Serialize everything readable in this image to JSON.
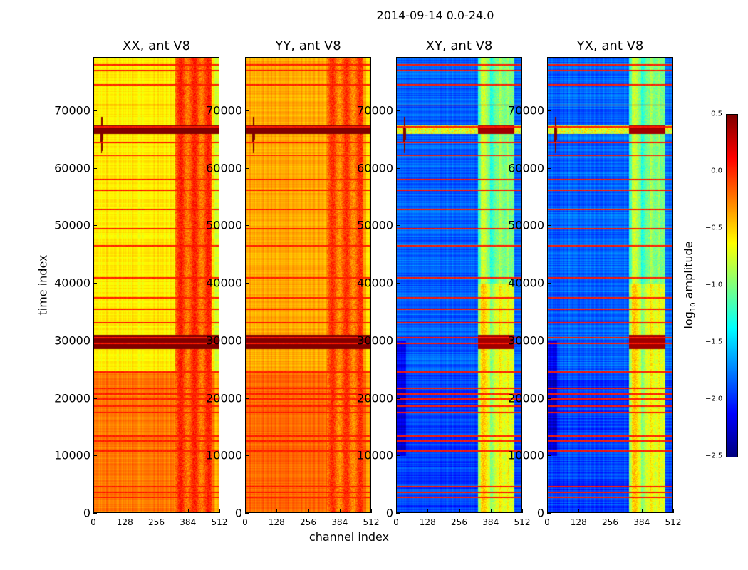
{
  "chart_data": {
    "type": "heatmap",
    "title": "2014-09-14 0.0-24.0",
    "xlabel": "channel index",
    "ylabel": "time index",
    "xlim": [
      0,
      512
    ],
    "ylim": [
      0,
      79300
    ],
    "xticks": [
      "0",
      "128",
      "256",
      "384",
      "512"
    ],
    "xtick_values": [
      0,
      128,
      256,
      384,
      512
    ],
    "yticks": [
      "0",
      "10000",
      "20000",
      "30000",
      "40000",
      "50000",
      "60000",
      "70000"
    ],
    "ytick_values": [
      0,
      10000,
      20000,
      30000,
      40000,
      50000,
      60000,
      70000
    ],
    "colorbar": {
      "label_main": "log",
      "label_sub": "10",
      "label_rest": " amplitude",
      "range": [
        -2.5,
        0.5
      ],
      "ticks": [
        "0.5",
        "0.0",
        "−0.5",
        "−1.0",
        "−1.5",
        "−2.0",
        "−2.5"
      ],
      "tick_values": [
        0.5,
        0.0,
        -0.5,
        -1.0,
        -1.5,
        -2.0,
        -2.5
      ],
      "colormap": "jet"
    },
    "panels": [
      {
        "title": "XX, ant V8",
        "base_level": -0.6,
        "low_time_level": -0.25,
        "band_level": -0.1,
        "burst_level": 0.5
      },
      {
        "title": "YY, ant V8",
        "base_level": -0.4,
        "low_time_level": -0.2,
        "band_level": -0.15,
        "burst_level": 0.5
      },
      {
        "title": "XY, ant V8",
        "base_level": -1.85,
        "low_time_level": -1.95,
        "band_level": -0.9,
        "burst_level": 0.4
      },
      {
        "title": "YX, ant V8",
        "base_level": -1.85,
        "low_time_level": -1.95,
        "band_level": -0.9,
        "burst_level": 0.4
      }
    ],
    "bright_channel_range": [
      330,
      480
    ],
    "burst_time_ranges": [
      [
        28500,
        31000
      ],
      [
        66000,
        67500
      ]
    ],
    "rfi_time_indices": [
      2800,
      3600,
      4700,
      10800,
      12600,
      13400,
      17500,
      18700,
      19900,
      20700,
      21700,
      24600,
      29500,
      30500,
      33100,
      35500,
      37500,
      41000,
      46500,
      49500,
      52900,
      56200,
      58000,
      62200,
      64500,
      67200,
      71000,
      74500,
      77000,
      78000
    ]
  }
}
